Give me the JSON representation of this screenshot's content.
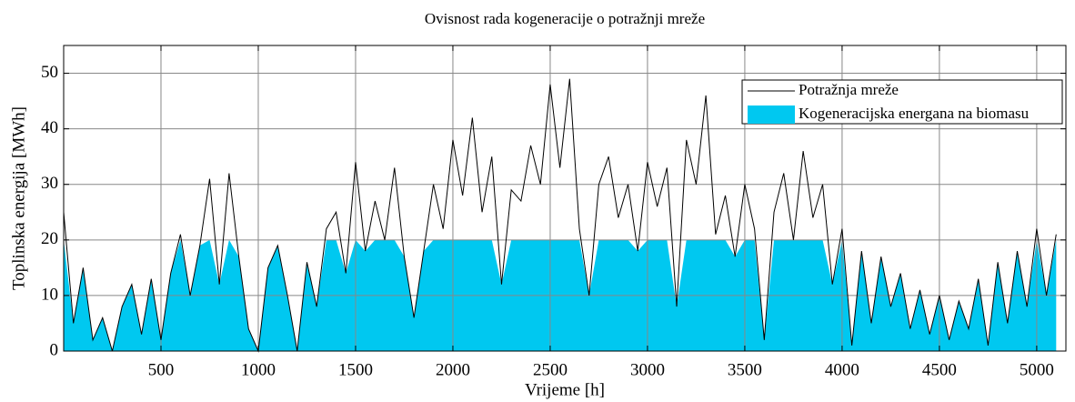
{
  "chart_data": {
    "type": "line",
    "title": "Ovisnost rada kogeneracije o potražnji mreže",
    "xlabel": "Vrijeme [h]",
    "ylabel": "Toplinska energija [MWh]",
    "xlim": [
      0,
      5150
    ],
    "ylim": [
      0,
      55
    ],
    "xticks": [
      500,
      1000,
      1500,
      2000,
      2500,
      3000,
      3500,
      4000,
      4500,
      5000
    ],
    "yticks": [
      0,
      10,
      20,
      30,
      40,
      50
    ],
    "grid": true,
    "legend": "upper right",
    "x": [
      0,
      50,
      100,
      150,
      200,
      250,
      300,
      350,
      400,
      450,
      500,
      550,
      600,
      650,
      700,
      750,
      800,
      850,
      900,
      950,
      1000,
      1050,
      1100,
      1150,
      1200,
      1250,
      1300,
      1350,
      1400,
      1450,
      1500,
      1550,
      1600,
      1650,
      1700,
      1750,
      1800,
      1850,
      1900,
      1950,
      2000,
      2050,
      2100,
      2150,
      2200,
      2250,
      2300,
      2350,
      2400,
      2450,
      2500,
      2550,
      2600,
      2650,
      2700,
      2750,
      2800,
      2850,
      2900,
      2950,
      3000,
      3050,
      3100,
      3150,
      3200,
      3250,
      3300,
      3350,
      3400,
      3450,
      3500,
      3550,
      3600,
      3650,
      3700,
      3750,
      3800,
      3850,
      3900,
      3950,
      4000,
      4050,
      4100,
      4150,
      4200,
      4250,
      4300,
      4350,
      4400,
      4450,
      4500,
      4550,
      4600,
      4650,
      4700,
      4750,
      4800,
      4850,
      4900,
      4950,
      5000,
      5050,
      5100
    ],
    "series": [
      {
        "name": "Potražnja mreže",
        "color": "#000000",
        "kind": "line",
        "values": [
          25,
          5,
          15,
          2,
          6,
          0,
          8,
          12,
          3,
          13,
          2,
          14,
          21,
          10,
          19,
          31,
          12,
          32,
          17,
          4,
          0,
          15,
          19,
          10,
          0,
          16,
          8,
          22,
          25,
          14,
          34,
          18,
          27,
          20,
          33,
          17,
          6,
          18,
          30,
          22,
          38,
          28,
          42,
          25,
          35,
          12,
          29,
          27,
          37,
          30,
          48,
          33,
          49,
          22,
          10,
          30,
          35,
          24,
          30,
          18,
          34,
          26,
          33,
          8,
          38,
          30,
          46,
          21,
          28,
          17,
          30,
          22,
          2,
          25,
          32,
          20,
          36,
          24,
          30,
          12,
          22,
          1,
          18,
          5,
          17,
          8,
          14,
          4,
          11,
          3,
          10,
          2,
          9,
          4,
          13,
          1,
          16,
          5,
          18,
          8,
          22,
          10,
          21
        ]
      },
      {
        "name": "Kogeneracijska energana na biomasu",
        "color": "#00c8f0",
        "kind": "area",
        "values": [
          20,
          5,
          15,
          2,
          6,
          0,
          8,
          12,
          3,
          13,
          2,
          14,
          20,
          10,
          19,
          20,
          12,
          20,
          17,
          4,
          0,
          15,
          19,
          10,
          0,
          16,
          8,
          20,
          20,
          14,
          20,
          18,
          20,
          20,
          20,
          17,
          6,
          18,
          20,
          20,
          20,
          20,
          20,
          20,
          20,
          12,
          20,
          20,
          20,
          20,
          20,
          20,
          20,
          20,
          10,
          20,
          20,
          20,
          20,
          18,
          20,
          20,
          20,
          8,
          20,
          20,
          20,
          20,
          20,
          17,
          20,
          20,
          2,
          20,
          20,
          20,
          20,
          20,
          20,
          12,
          20,
          1,
          18,
          5,
          17,
          8,
          14,
          4,
          11,
          3,
          10,
          2,
          9,
          4,
          13,
          1,
          16,
          5,
          18,
          8,
          20,
          10,
          20
        ]
      }
    ]
  }
}
